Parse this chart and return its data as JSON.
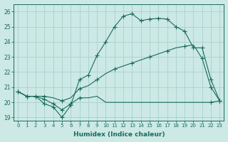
{
  "xlabel": "Humidex (Indice chaleur)",
  "ylabel": "",
  "bg_color": "#cce9e5",
  "grid_color": "#aed4cf",
  "line_color": "#1a6b5a",
  "xlim": [
    -0.5,
    23.5
  ],
  "ylim": [
    18.8,
    26.5
  ],
  "yticks": [
    19,
    20,
    21,
    22,
    23,
    24,
    25,
    26
  ],
  "xticks": [
    0,
    1,
    2,
    3,
    4,
    5,
    6,
    7,
    8,
    9,
    10,
    11,
    12,
    13,
    14,
    15,
    16,
    17,
    18,
    19,
    20,
    21,
    22,
    23
  ],
  "line1_x": [
    0,
    1,
    2,
    3,
    4,
    5,
    6,
    7,
    8,
    9,
    10,
    11,
    12,
    13,
    14,
    15,
    16,
    17,
    18,
    19,
    20,
    21,
    22,
    23
  ],
  "line1_y": [
    20.7,
    20.4,
    20.4,
    19.9,
    19.7,
    19.0,
    19.8,
    21.5,
    21.8,
    23.1,
    24.0,
    25.0,
    25.7,
    25.85,
    25.4,
    25.5,
    25.55,
    25.5,
    25.0,
    24.7,
    23.6,
    23.6,
    21.5,
    20.1
  ],
  "line2_x": [
    0,
    1,
    2,
    3,
    4,
    5,
    6,
    7,
    8,
    9,
    10,
    11,
    12,
    13,
    14,
    15,
    16,
    17,
    18,
    19,
    20,
    21,
    22,
    23
  ],
  "line2_y": [
    20.7,
    20.4,
    20.4,
    20.4,
    20.3,
    20.1,
    20.3,
    20.9,
    21.1,
    21.5,
    21.9,
    22.2,
    22.4,
    22.6,
    22.8,
    23.0,
    23.2,
    23.4,
    23.6,
    23.7,
    23.8,
    22.9,
    21.0,
    20.1
  ],
  "line3_x": [
    0,
    1,
    2,
    3,
    4,
    5,
    6,
    7,
    8,
    9,
    10,
    11,
    12,
    13,
    14,
    15,
    16,
    17,
    18,
    19,
    20,
    21,
    22,
    23
  ],
  "line3_y": [
    20.7,
    20.4,
    20.4,
    20.2,
    19.9,
    19.5,
    19.9,
    20.3,
    20.3,
    20.4,
    20.0,
    20.0,
    20.0,
    20.0,
    20.0,
    20.0,
    20.0,
    20.0,
    20.0,
    20.0,
    20.0,
    20.0,
    20.0,
    20.1
  ],
  "marker1_x": [
    0,
    1,
    2,
    3,
    4,
    5,
    6,
    7,
    8,
    9,
    10,
    11,
    12,
    13,
    14,
    15,
    16,
    17,
    18,
    19,
    20,
    21,
    22,
    23
  ],
  "marker1_y": [
    20.7,
    20.4,
    20.4,
    19.9,
    19.7,
    19.0,
    19.8,
    21.5,
    21.8,
    23.1,
    24.0,
    25.0,
    25.7,
    25.85,
    25.4,
    25.5,
    25.55,
    25.5,
    25.0,
    24.7,
    23.6,
    23.6,
    21.5,
    20.1
  ],
  "marker2_x": [
    0,
    1,
    3,
    5,
    7,
    9,
    11,
    13,
    15,
    17,
    19,
    21,
    22,
    23
  ],
  "marker2_y": [
    20.7,
    20.4,
    20.4,
    20.1,
    20.9,
    21.5,
    22.2,
    22.6,
    23.0,
    23.4,
    23.7,
    22.9,
    21.0,
    20.1
  ],
  "marker3_x": [
    0,
    1,
    2,
    3,
    4,
    5,
    6,
    7,
    22,
    23
  ],
  "marker3_y": [
    20.7,
    20.4,
    20.4,
    20.2,
    19.9,
    19.5,
    19.9,
    20.3,
    20.0,
    20.1
  ]
}
